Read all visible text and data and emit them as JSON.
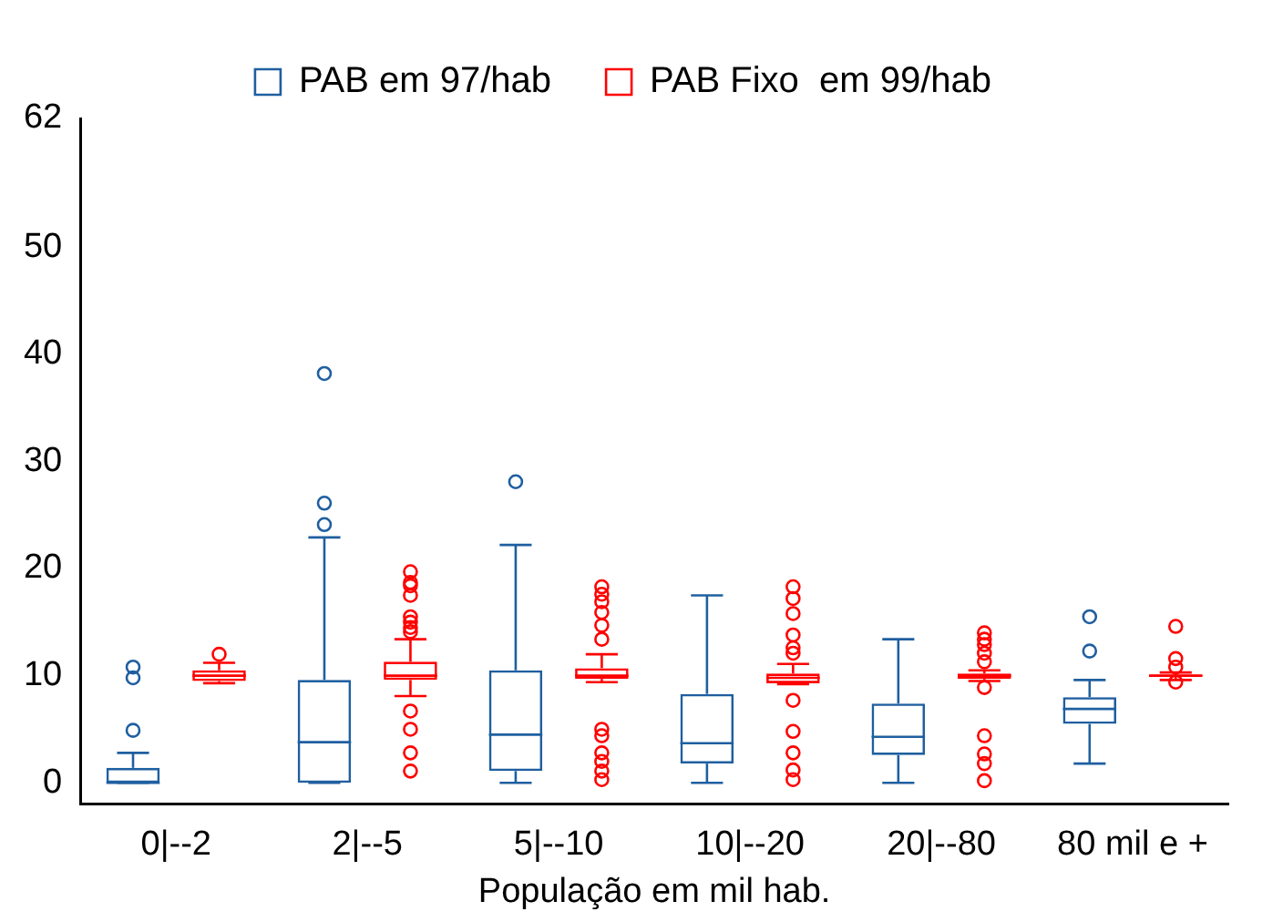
{
  "chart_data": {
    "type": "box",
    "xlabel": "População em mil hab.",
    "categories": [
      "0|--2",
      "2|--5",
      "5|--10",
      "10|--20",
      "20|--80",
      "80 mil e +"
    ],
    "ylim": [
      -2,
      62
    ],
    "yticks": [
      0,
      10,
      20,
      30,
      40,
      50,
      62
    ],
    "grid": false,
    "legend": "top",
    "series": [
      {
        "name": "PAB em 97/hab",
        "color": "#1f5fa0",
        "boxes": [
          {
            "low": 0,
            "q1": 0,
            "median": 0,
            "q3": 1.4,
            "high": 2.8,
            "outliers": [
              4.9,
              9.8,
              10.8
            ]
          },
          {
            "low": 0,
            "q1": 0,
            "median": 3.8,
            "q3": 9.6,
            "high": 22.9,
            "outliers": [
              24.1,
              26.1,
              38.2
            ]
          },
          {
            "low": 0,
            "q1": 1.1,
            "median": 4.5,
            "q3": 10.5,
            "high": 22.2,
            "outliers": [
              28.1
            ]
          },
          {
            "low": 0,
            "q1": 1.8,
            "median": 3.7,
            "q3": 8.3,
            "high": 17.5
          },
          {
            "low": 0,
            "q1": 2.6,
            "median": 4.3,
            "q3": 7.4,
            "high": 13.4
          },
          {
            "low": 1.8,
            "q1": 5.5,
            "median": 6.9,
            "q3": 8.0,
            "high": 9.6,
            "outliers": [
              12.3,
              15.5
            ]
          }
        ]
      },
      {
        "name": "PAB Fixo  em 99/hab",
        "color": "#ff0000",
        "boxes": [
          {
            "low": 9.3,
            "q1": 9.5,
            "median": 10.0,
            "q3": 10.5,
            "high": 11.2,
            "outliers": [
              12.0
            ]
          },
          {
            "low": 8.1,
            "q1": 9.6,
            "median": 10.0,
            "q3": 11.3,
            "high": 13.4,
            "outliers": [
              19.7,
              18.7,
              18.4,
              17.5,
              15.5,
              15.0,
              14.5,
              14.1,
              6.7,
              5.0,
              2.8,
              1.1
            ]
          },
          {
            "low": 9.4,
            "q1": 9.7,
            "median": 10.0,
            "q3": 10.7,
            "high": 12.0,
            "outliers": [
              18.3,
              17.6,
              16.9,
              15.9,
              14.7,
              13.4,
              5.0,
              4.4,
              2.8,
              2.0,
              1.1,
              0.3
            ]
          },
          {
            "low": 9.2,
            "q1": 9.3,
            "median": 9.8,
            "q3": 10.2,
            "high": 11.1,
            "outliers": [
              18.3,
              17.2,
              15.8,
              13.8,
              12.6,
              12.1,
              7.7,
              4.8,
              2.8,
              1.2,
              0.3
            ]
          },
          {
            "low": 9.5,
            "q1": 9.7,
            "median": 10.0,
            "q3": 10.2,
            "high": 10.5,
            "outliers": [
              14.0,
              13.4,
              12.9,
              12.1,
              11.3,
              8.9,
              4.4,
              2.7,
              1.8,
              0.2
            ]
          },
          {
            "low": 9.6,
            "q1": 9.9,
            "median": 10.0,
            "q3": 10.1,
            "high": 10.3,
            "outliers": [
              14.6,
              11.6,
              10.8,
              9.4
            ]
          }
        ]
      }
    ]
  }
}
